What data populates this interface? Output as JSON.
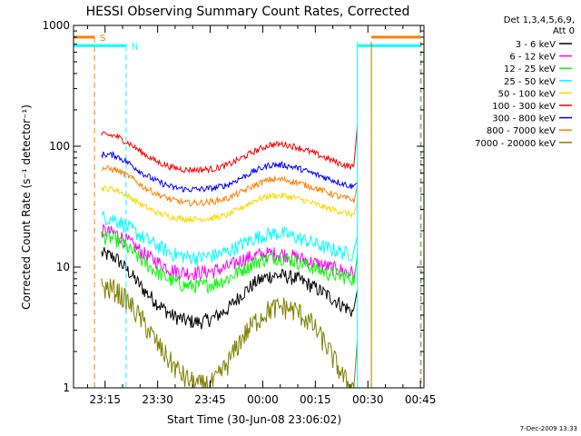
{
  "colors": {
    "axis": "#000000",
    "background": "#ffffff",
    "s_marker": "#ff8000",
    "n_marker": "#00ffff",
    "vline_brown": "#b08000"
  },
  "chart_data": {
    "type": "line",
    "title": "HESSI Observing Summary Count Rates, Corrected",
    "xlabel": "Start Time (30-Jun-08 23:06:02)",
    "ylabel": "Corrected Count Rate (s⁻¹ detector⁻¹)",
    "y_scale": "log",
    "ylim": [
      1,
      1000
    ],
    "xlim_minutes": [
      0,
      100
    ],
    "x_ticks": [
      {
        "label": "23:15",
        "t": 9
      },
      {
        "label": "23:30",
        "t": 24
      },
      {
        "label": "23:45",
        "t": 39
      },
      {
        "label": "00:00",
        "t": 54
      },
      {
        "label": "00:15",
        "t": 69
      },
      {
        "label": "00:30",
        "t": 84
      },
      {
        "label": "00:45",
        "t": 99
      }
    ],
    "y_ticks": [
      {
        "label": "1",
        "v": 1
      },
      {
        "label": "10",
        "v": 10
      },
      {
        "label": "100",
        "v": 100
      },
      {
        "label": "1000",
        "v": 1000
      }
    ],
    "legend": {
      "placement": "right",
      "header": [
        "Det 1,3,4,5,6,9,",
        "Att 0"
      ]
    },
    "markers": [
      {
        "label": "S",
        "t_start": 0,
        "t_end": 6,
        "t_line": 6,
        "value": 800,
        "color": "#ff8000",
        "line_style": "dashed"
      },
      {
        "label": "N",
        "t_start": 0,
        "t_end": 15,
        "t_line": 15,
        "value": 680,
        "color": "#00ffff",
        "line_style": "dashed"
      }
    ],
    "right_bars": [
      {
        "t_start": 85,
        "t_end": 99,
        "value": 800,
        "color": "#ff8000"
      },
      {
        "t_start": 81,
        "t_end": 99,
        "value": 680,
        "color": "#00ffff"
      }
    ],
    "vertical_lines": [
      {
        "t": 81,
        "color": "#00ffff",
        "style": "solid"
      },
      {
        "t": 85,
        "color": "#b08000",
        "style": "solid"
      },
      {
        "t": 99,
        "color": "#00ffff",
        "style": "dashed"
      },
      {
        "t": 99.2,
        "color": "#ff8000",
        "style": "dashed"
      }
    ],
    "series": [
      {
        "name": "3 - 6 keV",
        "color": "#000000",
        "t": [
          8,
          12,
          16,
          20,
          24,
          28,
          32,
          36,
          40,
          44,
          48,
          52,
          56,
          60,
          64,
          68,
          72,
          76,
          78,
          80,
          81
        ],
        "values": [
          13,
          12,
          9,
          6.5,
          5,
          4,
          3.6,
          3.5,
          3.8,
          4.5,
          6,
          7.5,
          8.5,
          8.5,
          8,
          7,
          6,
          5,
          4.6,
          4.2,
          6.5
        ]
      },
      {
        "name": "6 - 12 keV",
        "color": "#ff00ff",
        "t": [
          8,
          12,
          16,
          20,
          24,
          28,
          32,
          36,
          40,
          44,
          48,
          52,
          56,
          60,
          64,
          68,
          72,
          76,
          78,
          80,
          81
        ],
        "values": [
          20,
          19,
          16,
          13,
          11,
          9.5,
          9,
          9,
          9.3,
          10,
          11.5,
          12.5,
          13,
          12.8,
          12,
          11,
          10.2,
          9.5,
          9.2,
          9,
          12
        ]
      },
      {
        "name": "12 - 25 keV",
        "color": "#00ff00",
        "t": [
          8,
          12,
          16,
          20,
          24,
          28,
          32,
          36,
          40,
          44,
          48,
          52,
          56,
          60,
          64,
          68,
          72,
          76,
          78,
          80,
          81
        ],
        "values": [
          18,
          17,
          14,
          11,
          9,
          7.7,
          7,
          7,
          7.3,
          8,
          9.5,
          11,
          12,
          12,
          11,
          10,
          9,
          8.5,
          8.2,
          8,
          13
        ]
      },
      {
        "name": "25 - 50 keV",
        "color": "#00ffff",
        "t": [
          8,
          12,
          16,
          20,
          24,
          28,
          32,
          36,
          40,
          44,
          48,
          52,
          56,
          60,
          64,
          68,
          72,
          76,
          78,
          80,
          81
        ],
        "values": [
          26,
          25,
          21,
          17.5,
          15,
          13,
          12.2,
          12,
          12.5,
          13.5,
          15.5,
          17.5,
          19,
          19,
          17.5,
          16,
          14.5,
          13.5,
          13,
          12.8,
          18
        ]
      },
      {
        "name": "50 - 100 keV",
        "color": "#ffd700",
        "t": [
          8,
          12,
          16,
          20,
          24,
          28,
          32,
          36,
          40,
          44,
          48,
          52,
          56,
          60,
          64,
          68,
          72,
          76,
          78,
          80,
          81
        ],
        "values": [
          45,
          44,
          38,
          32,
          28,
          26,
          25,
          25,
          25.5,
          27,
          31,
          36,
          39,
          39,
          37,
          34,
          31,
          29,
          28,
          27,
          34
        ]
      },
      {
        "name": "100 - 300 keV",
        "color": "#ff0000",
        "t": [
          8,
          12,
          16,
          20,
          24,
          28,
          32,
          36,
          40,
          44,
          48,
          52,
          56,
          60,
          64,
          68,
          72,
          76,
          78,
          80,
          81
        ],
        "values": [
          125,
          122,
          105,
          87,
          74,
          67,
          64,
          64,
          65,
          70,
          80,
          92,
          103,
          104,
          98,
          89,
          80,
          72,
          69,
          67,
          150
        ]
      },
      {
        "name": "300 - 800 keV",
        "color": "#0000ff",
        "t": [
          8,
          12,
          16,
          20,
          24,
          28,
          32,
          36,
          40,
          44,
          48,
          52,
          56,
          60,
          64,
          68,
          72,
          76,
          78,
          80,
          81
        ],
        "values": [
          86,
          84,
          72,
          59,
          51,
          46,
          44,
          44,
          45,
          48,
          55,
          63,
          70,
          70,
          66,
          60,
          55,
          50,
          48,
          46,
          50
        ]
      },
      {
        "name": "800 - 7000 keV",
        "color": "#ff8000",
        "t": [
          8,
          12,
          16,
          20,
          24,
          28,
          32,
          36,
          40,
          44,
          48,
          52,
          56,
          60,
          64,
          68,
          72,
          76,
          78,
          80,
          81
        ],
        "values": [
          66,
          64,
          56,
          46,
          40,
          36,
          34,
          34,
          35,
          37,
          42,
          48,
          53,
          53,
          50,
          46,
          42,
          38,
          37,
          36,
          48
        ]
      },
      {
        "name": "7000 - 20000 keV",
        "color": "#808000",
        "t": [
          8,
          12,
          16,
          20,
          24,
          28,
          32,
          36,
          40,
          44,
          48,
          52,
          56,
          60,
          64,
          68,
          72,
          76,
          78,
          80,
          81
        ],
        "values": [
          6.8,
          6.5,
          5,
          3.5,
          2.3,
          1.6,
          1.2,
          1.05,
          1.1,
          1.6,
          2.6,
          3.6,
          4.5,
          4.7,
          4.3,
          3.4,
          2.3,
          1.4,
          1.1,
          1.0,
          2.5
        ]
      }
    ],
    "timestamp": "7-Dec-2009 13:33"
  }
}
